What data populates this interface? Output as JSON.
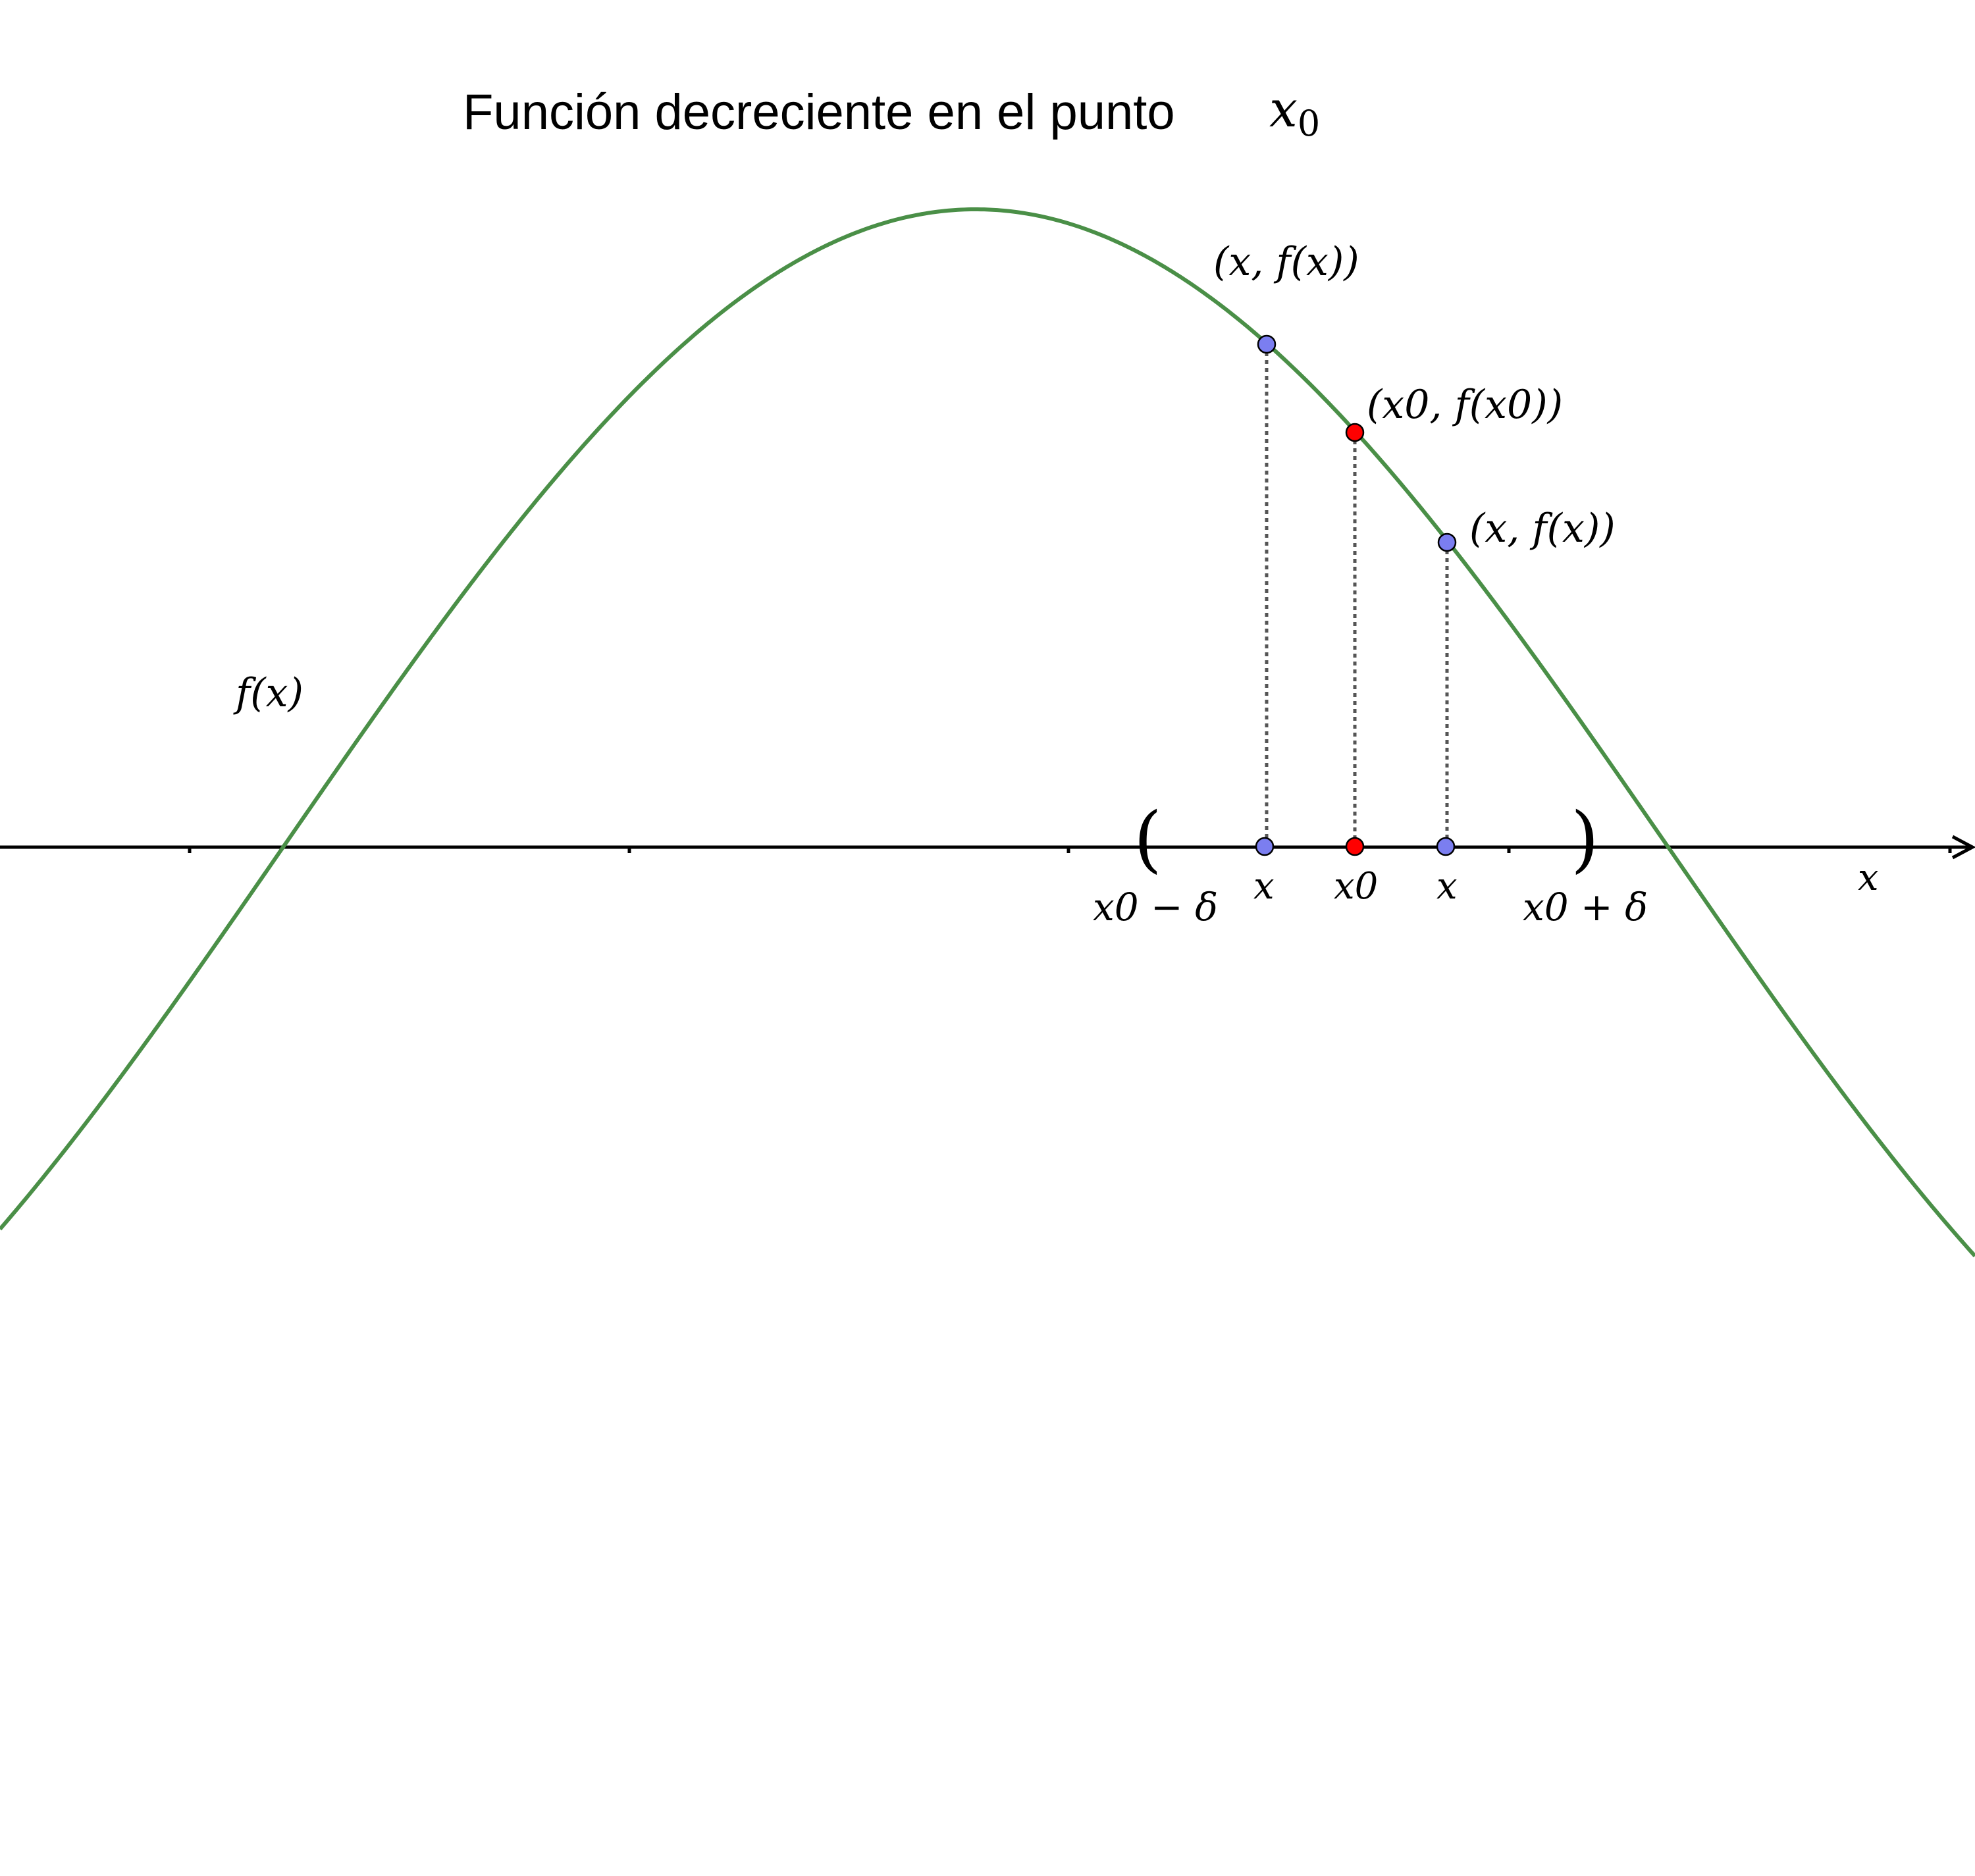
{
  "title": {
    "text": "Función decreciente en el punto",
    "math": "x",
    "math_sub": "0"
  },
  "curve": {
    "label": "f(x)",
    "color": "#4a8f47"
  },
  "x_axis": {
    "label": "x"
  },
  "interval": {
    "left_bracket": "(",
    "right_bracket": ")",
    "left_label": "x0 − δ",
    "right_label": "x0 + δ"
  },
  "points": {
    "left": {
      "label": "(x, f(x))",
      "axis_label": "x",
      "color": "#7b7ef0"
    },
    "center": {
      "label": "(x0, f(x0))",
      "axis_label": "x0",
      "color": "#ff0000"
    },
    "right": {
      "label": "(x, f(x))",
      "axis_label": "x",
      "color": "#7b7ef0"
    }
  }
}
